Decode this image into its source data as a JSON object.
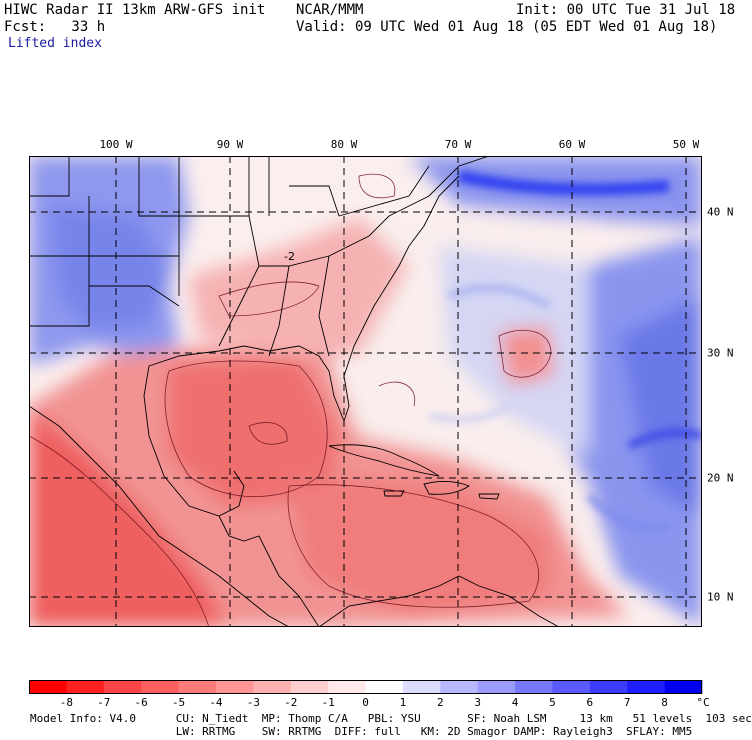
{
  "header": {
    "left1": "HIWC Radar II 13km ARW-GFS init",
    "center1": "NCAR/MMM",
    "right1": "Init: 00 UTC Tue 31 Jul 18",
    "left2": "Fcst:   33 h",
    "right2": "Valid: 09 UTC Wed 01 Aug 18 (05 EDT Wed 01 Aug 18)",
    "field": "Lifted index"
  },
  "map": {
    "lon_labels": [
      "100 W",
      "90 W",
      "80 W",
      "70 W",
      "60 W",
      "50 W"
    ],
    "lat_labels": [
      "40 N",
      "30 N",
      "20 N",
      "10 N"
    ],
    "contour_label": "-2",
    "colors": {
      "deep_blue": "#2b2bff",
      "mid_blue": "#7f8cf0",
      "light_blue": "#c9cdf5",
      "white": "#fbf4f4",
      "light_red": "#f8c4c4",
      "mid_red": "#f08585",
      "deep_red": "#ee4a4a",
      "contour": "#6e0c1a"
    }
  },
  "colorbar": {
    "labels": [
      "-8",
      "-7",
      "-6",
      "-5",
      "-4",
      "-3",
      "-2",
      "-1",
      "0",
      "1",
      "2",
      "3",
      "4",
      "5",
      "6",
      "7",
      "8"
    ],
    "unit": "°C",
    "colors": [
      "#ff0000",
      "#ff2020",
      "#ff4545",
      "#ff5f5f",
      "#ff7a7a",
      "#ff9595",
      "#ffb0b0",
      "#ffcfcf",
      "#ffe9e9",
      "#ffffff",
      "#dcdcff",
      "#b8b8ff",
      "#9a9aff",
      "#7878ff",
      "#5a5aff",
      "#3c3cff",
      "#1e1eff",
      "#0000ee"
    ]
  },
  "footer": {
    "line1": "Model Info: V4.0      CU: N_Tiedt  MP: Thomp C/A   PBL: YSU       SF: Noah LSM     13 km   51 levels  103 sec",
    "line2": "                      LW: RRTMG    SW: RRTMG  DIFF: full   KM: 2D Smagor DAMP: Rayleigh3  SFLAY: MM5"
  }
}
